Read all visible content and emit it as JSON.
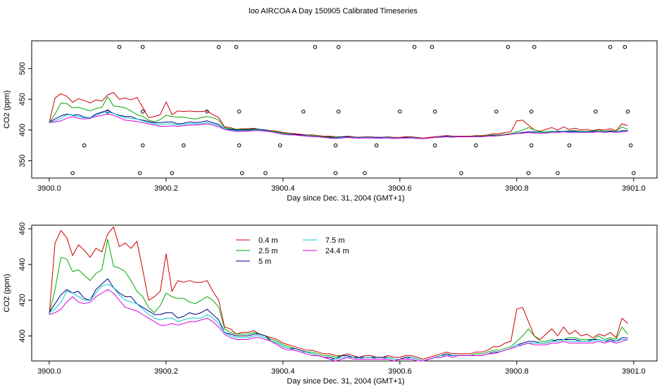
{
  "title": "loo AIRCOA A  Day 150905  Calibrated Timeseries",
  "chart_data": [
    {
      "type": "line",
      "xlabel": "Day since Dec. 31, 2004 (GMT+1)",
      "ylabel": "CO2 (ppm)",
      "xlim": [
        3899.97,
        3901.04
      ],
      "ylim": [
        322,
        545
      ],
      "xticks": [
        3900.0,
        3900.2,
        3900.4,
        3900.6,
        3900.8,
        3901.0
      ],
      "xtick_labels": [
        "3900.0",
        "3900.2",
        "3900.4",
        "3900.6",
        "3900.8",
        "3901.0"
      ],
      "yticks": [
        350,
        400,
        450,
        500
      ],
      "ytick_labels": [
        "350",
        "400",
        "450",
        "500"
      ],
      "markers": {
        "x": [
          3900.04,
          3900.06,
          3900.1,
          3900.12,
          3900.155,
          3900.16,
          3900.16,
          3900.16,
          3900.21,
          3900.23,
          3900.27,
          3900.29,
          3900.32,
          3900.325,
          3900.325,
          3900.33,
          3900.37,
          3900.395,
          3900.435,
          3900.455,
          3900.49,
          3900.49,
          3900.495,
          3900.495,
          3900.54,
          3900.56,
          3900.6,
          3900.625,
          3900.655,
          3900.66,
          3900.66,
          3900.705,
          3900.73,
          3900.765,
          3900.785,
          3900.82,
          3900.825,
          3900.825,
          3900.83,
          3900.87,
          3900.89,
          3900.935,
          3900.96,
          3900.985,
          3900.99,
          3900.995,
          3901.0
        ],
        "y": [
          330,
          375,
          430,
          535,
          330,
          535,
          430,
          375,
          330,
          375,
          430,
          535,
          535,
          430,
          375,
          330,
          330,
          375,
          430,
          535,
          330,
          375,
          535,
          430,
          330,
          375,
          430,
          535,
          535,
          430,
          375,
          330,
          375,
          430,
          535,
          330,
          375,
          430,
          535,
          330,
          375,
          430,
          535,
          535,
          430,
          375,
          330
        ]
      }
    },
    {
      "type": "line",
      "xlabel": "Day since Dec. 31, 2004 (GMT+1)",
      "ylabel": "CO2 (ppm)",
      "xlim": [
        3899.97,
        3901.04
      ],
      "ylim": [
        386,
        462
      ],
      "xticks": [
        3900.0,
        3900.2,
        3900.4,
        3900.6,
        3900.8,
        3901.0
      ],
      "xtick_labels": [
        "3900.0",
        "3900.2",
        "3900.4",
        "3900.6",
        "3900.8",
        "3901.0"
      ],
      "yticks": [
        400,
        420,
        440,
        460
      ],
      "ytick_labels": [
        "400",
        "420",
        "440",
        "460"
      ],
      "x": [
        3900.0,
        3900.01,
        3900.02,
        3900.03,
        3900.04,
        3900.05,
        3900.06,
        3900.07,
        3900.08,
        3900.09,
        3900.1,
        3900.11,
        3900.12,
        3900.13,
        3900.14,
        3900.15,
        3900.16,
        3900.17,
        3900.18,
        3900.19,
        3900.2,
        3900.21,
        3900.22,
        3900.23,
        3900.24,
        3900.25,
        3900.26,
        3900.27,
        3900.28,
        3900.29,
        3900.3,
        3900.31,
        3900.32,
        3900.33,
        3900.34,
        3900.35,
        3900.36,
        3900.37,
        3900.38,
        3900.39,
        3900.4,
        3900.41,
        3900.42,
        3900.43,
        3900.44,
        3900.45,
        3900.46,
        3900.47,
        3900.48,
        3900.49,
        3900.5,
        3900.51,
        3900.52,
        3900.53,
        3900.54,
        3900.55,
        3900.56,
        3900.57,
        3900.58,
        3900.59,
        3900.6,
        3900.61,
        3900.62,
        3900.63,
        3900.64,
        3900.65,
        3900.66,
        3900.67,
        3900.68,
        3900.69,
        3900.7,
        3900.71,
        3900.72,
        3900.73,
        3900.74,
        3900.75,
        3900.76,
        3900.77,
        3900.78,
        3900.79,
        3900.8,
        3900.81,
        3900.82,
        3900.83,
        3900.84,
        3900.85,
        3900.86,
        3900.87,
        3900.88,
        3900.89,
        3900.9,
        3900.91,
        3900.92,
        3900.93,
        3900.94,
        3900.95,
        3900.96,
        3900.97,
        3900.98,
        3900.99
      ],
      "series": [
        {
          "name": "0.4 m",
          "color": "#cc0000",
          "values": [
            412,
            452,
            459,
            455,
            445,
            451,
            448,
            444,
            449,
            447,
            457,
            461,
            450,
            452,
            449,
            453,
            437,
            420,
            422,
            425,
            446,
            425,
            431,
            430,
            431,
            430,
            430,
            431,
            425,
            420,
            405,
            404,
            401,
            402,
            402,
            403,
            401,
            400,
            399,
            398,
            396,
            395,
            394,
            393,
            392,
            392,
            391,
            390,
            390,
            389,
            389,
            390,
            389,
            388,
            389,
            389,
            388,
            388,
            389,
            388,
            388,
            389,
            389,
            388,
            387,
            388,
            389,
            390,
            391,
            390,
            390,
            390,
            390,
            391,
            391,
            392,
            394,
            394,
            396,
            397,
            415,
            416,
            408,
            400,
            398,
            401,
            404,
            400,
            405,
            401,
            403,
            400,
            401,
            399,
            401,
            400,
            402,
            399,
            410,
            407
          ]
        },
        {
          "name": "2.5 m",
          "color": "#00aa00",
          "values": [
            412,
            426,
            444,
            443,
            436,
            437,
            434,
            431,
            435,
            437,
            454,
            439,
            438,
            436,
            431,
            425,
            422,
            416,
            413,
            417,
            424,
            422,
            421,
            421,
            419,
            418,
            420,
            422,
            420,
            416,
            404,
            402,
            401,
            401,
            401,
            402,
            401,
            400,
            398,
            397,
            395,
            394,
            393,
            392,
            391,
            391,
            390,
            389,
            389,
            388,
            389,
            389,
            388,
            388,
            388,
            388,
            388,
            388,
            388,
            387,
            387,
            388,
            388,
            387,
            386,
            387,
            388,
            389,
            390,
            389,
            389,
            389,
            389,
            390,
            390,
            391,
            392,
            392,
            393,
            394,
            397,
            400,
            404,
            400,
            397,
            397,
            398,
            397,
            398,
            399,
            399,
            398,
            398,
            398,
            400,
            398,
            399,
            398,
            405,
            401
          ]
        },
        {
          "name": "5 m",
          "color": "#00008b",
          "values": [
            413,
            418,
            423,
            426,
            424,
            425,
            421,
            420,
            426,
            429,
            432,
            427,
            424,
            422,
            422,
            418,
            416,
            414,
            412,
            412,
            413,
            413,
            410,
            411,
            413,
            412,
            413,
            415,
            412,
            409,
            402,
            401,
            400,
            400,
            400,
            401,
            401,
            400,
            397,
            396,
            394,
            393,
            393,
            392,
            391,
            390,
            389,
            388,
            388,
            387,
            389,
            389,
            388,
            388,
            388,
            388,
            388,
            388,
            388,
            387,
            387,
            388,
            388,
            387,
            386,
            387,
            388,
            389,
            390,
            389,
            389,
            389,
            389,
            389,
            389,
            390,
            391,
            391,
            392,
            393,
            395,
            396,
            397,
            397,
            396,
            396,
            397,
            398,
            398,
            398,
            398,
            397,
            397,
            398,
            398,
            397,
            398,
            397,
            399,
            399
          ]
        },
        {
          "name": "7.5 m",
          "color": "#00cccc",
          "values": [
            413,
            415,
            419,
            425,
            424,
            422,
            420,
            420,
            424,
            428,
            429,
            427,
            423,
            420,
            419,
            418,
            415,
            412,
            410,
            409,
            410,
            410,
            408,
            409,
            410,
            410,
            410,
            412,
            410,
            407,
            402,
            400,
            399,
            399,
            399,
            400,
            400,
            399,
            397,
            396,
            394,
            393,
            392,
            391,
            391,
            390,
            389,
            388,
            387,
            387,
            388,
            388,
            388,
            387,
            388,
            388,
            387,
            387,
            388,
            387,
            387,
            387,
            388,
            387,
            386,
            387,
            388,
            389,
            389,
            389,
            389,
            389,
            389,
            389,
            389,
            390,
            390,
            391,
            392,
            393,
            395,
            395,
            396,
            396,
            396,
            396,
            397,
            397,
            398,
            397,
            397,
            397,
            397,
            397,
            398,
            397,
            397,
            397,
            398,
            398
          ]
        },
        {
          "name": "24.4 m",
          "color": "#dd00dd",
          "values": [
            412,
            413,
            415,
            419,
            422,
            419,
            418,
            419,
            422,
            424,
            426,
            424,
            420,
            416,
            415,
            414,
            412,
            410,
            408,
            406,
            406,
            407,
            406,
            407,
            408,
            408,
            409,
            410,
            408,
            405,
            401,
            399,
            398,
            398,
            398,
            399,
            399,
            398,
            397,
            395,
            393,
            392,
            392,
            391,
            390,
            389,
            389,
            388,
            387,
            386,
            387,
            388,
            387,
            387,
            387,
            387,
            387,
            387,
            387,
            386,
            387,
            387,
            387,
            386,
            386,
            387,
            388,
            388,
            389,
            388,
            389,
            389,
            389,
            389,
            389,
            390,
            390,
            391,
            392,
            393,
            394,
            395,
            396,
            395,
            395,
            395,
            396,
            396,
            397,
            396,
            396,
            396,
            396,
            396,
            397,
            396,
            397,
            396,
            397,
            398
          ]
        }
      ],
      "legend": {
        "placement": "top-left"
      }
    }
  ]
}
